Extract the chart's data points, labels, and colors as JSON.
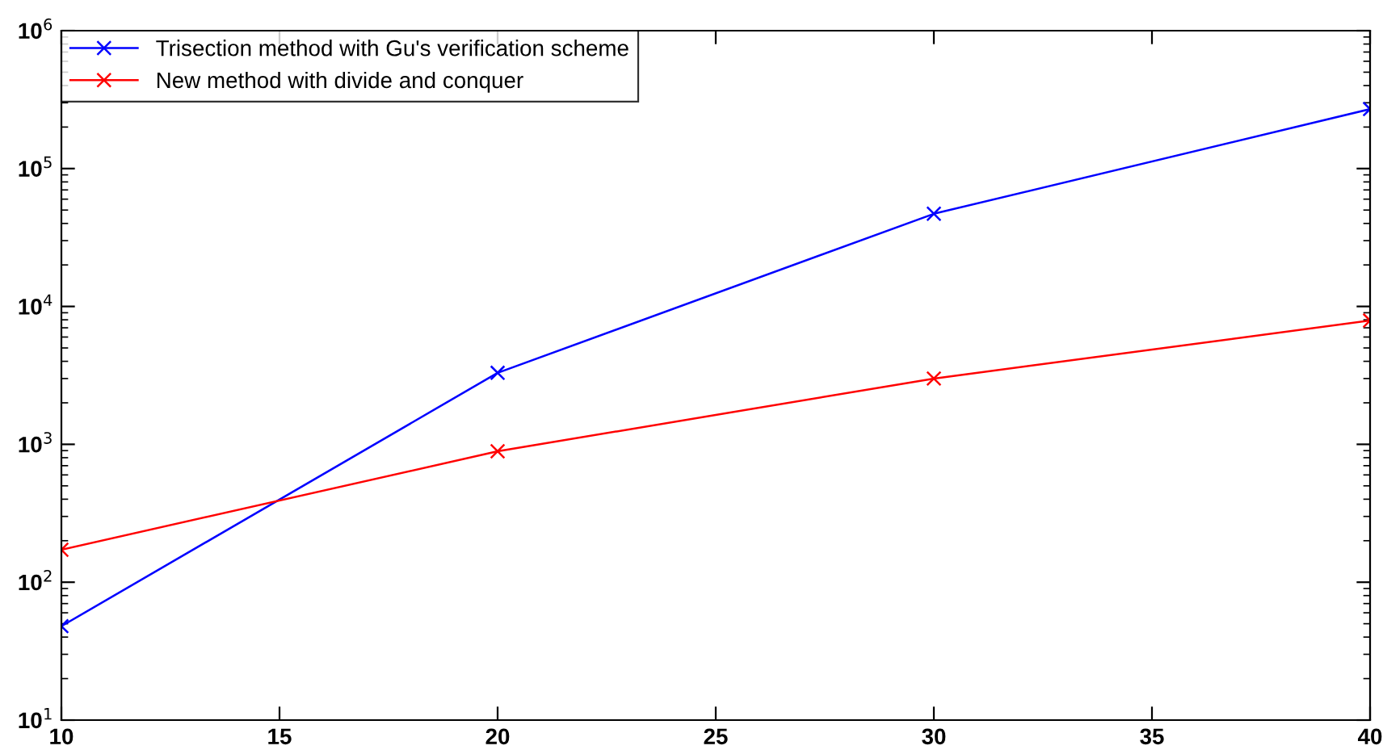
{
  "chart_data": {
    "type": "line",
    "x": [
      10,
      20,
      30,
      40
    ],
    "series": [
      {
        "name": "Trisection method with Gu's verification scheme",
        "color": "#0000ff",
        "values": [
          48,
          3300,
          47000,
          270000
        ]
      },
      {
        "name": "New method with divide and conquer",
        "color": "#ff0000",
        "values": [
          172,
          890,
          3000,
          7900
        ]
      }
    ],
    "log": "y",
    "xlim": [
      10,
      40
    ],
    "xticks": [
      10,
      15,
      20,
      25,
      30,
      35,
      40
    ],
    "ylim": [
      10,
      1000000
    ],
    "yticks": [
      {
        "value": 10,
        "label": "10$^{1}$"
      },
      {
        "value": 100,
        "label": "10$^{2}$"
      },
      {
        "value": 1000,
        "label": "10$^{3}$"
      },
      {
        "value": 10000,
        "label": "10$^{4}$"
      },
      {
        "value": 100000,
        "label": "10$^{5}$"
      },
      {
        "value": 1000000,
        "label": "10$^{6}$"
      }
    ],
    "grid": false,
    "legend": "top left",
    "marker": "cross",
    "line_style": "solid"
  }
}
